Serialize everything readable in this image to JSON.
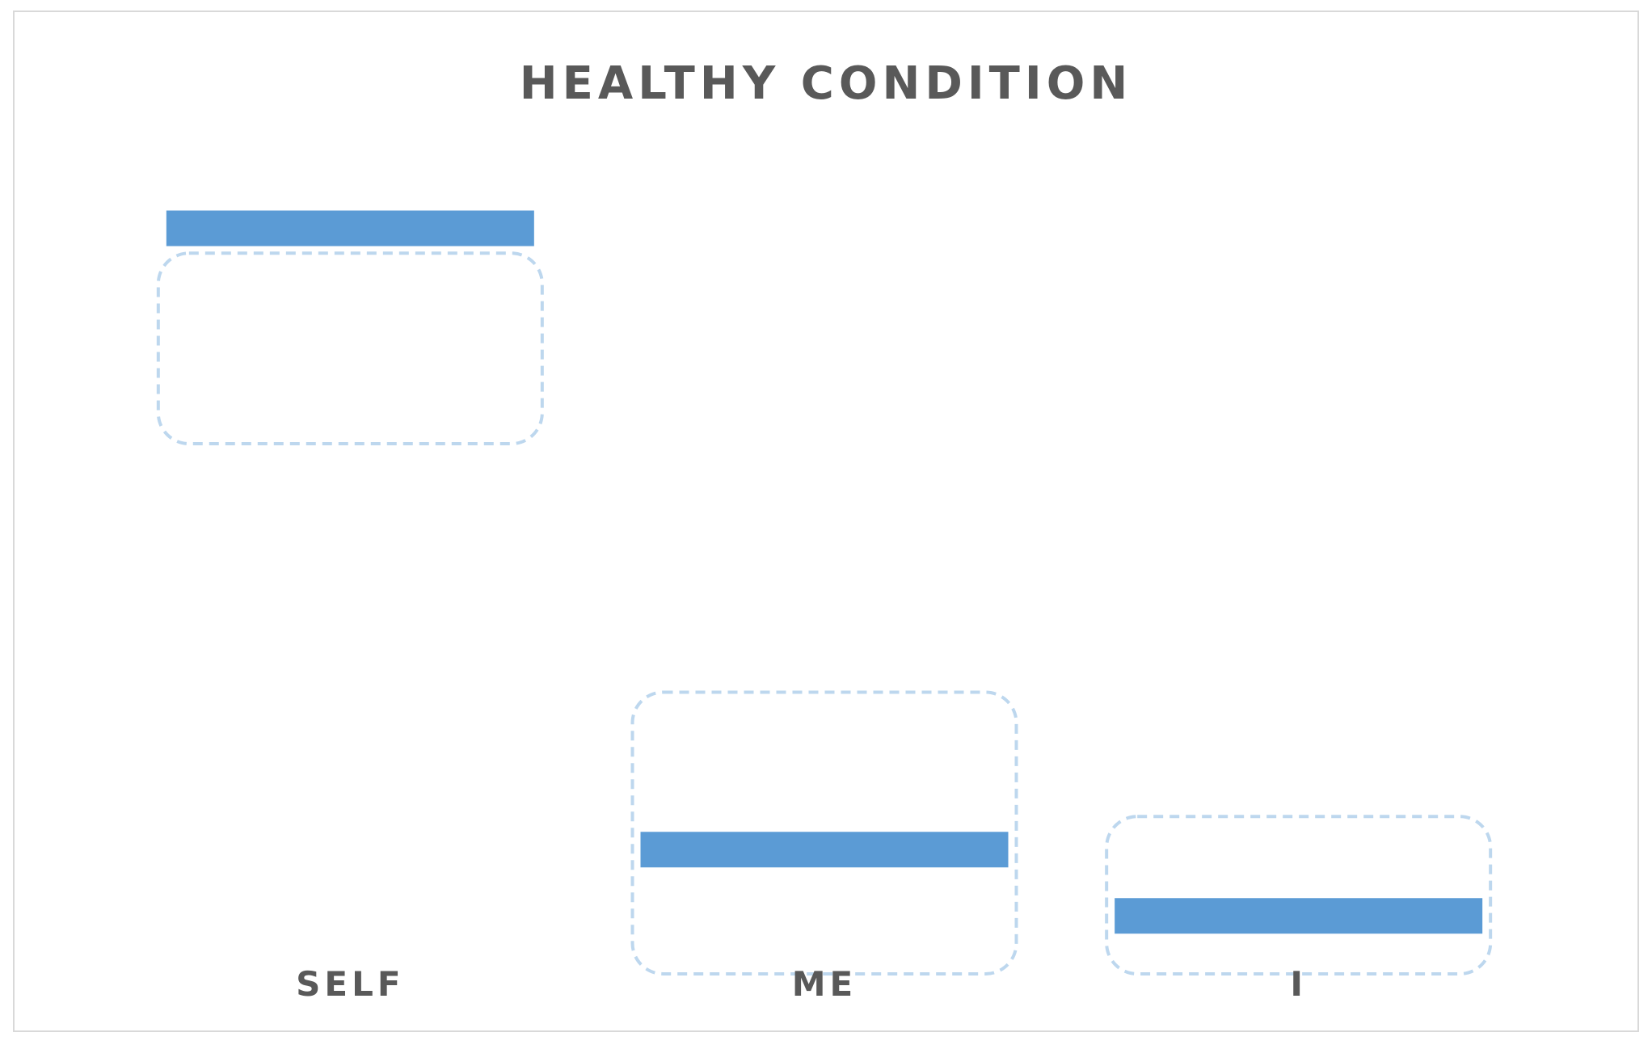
{
  "chart_data": {
    "type": "bar",
    "subtype": "floating-range",
    "title": "HEALTHY CONDITION",
    "categories": [
      "SELF",
      "ME",
      "I"
    ],
    "series": [
      {
        "values": [
          0.9,
          0.15,
          0.07
        ],
        "color": "#5B9BD5"
      }
    ],
    "ranges": [
      {
        "low": 0.64,
        "high": 0.87
      },
      {
        "low": 0.0,
        "high": 0.34
      },
      {
        "low": 0.0,
        "high": 0.19
      }
    ],
    "range_box_color": "#BDD7EE",
    "xlabel": "",
    "ylabel": "",
    "ylim": [
      0,
      1
    ],
    "grid": false,
    "legend": "none"
  }
}
